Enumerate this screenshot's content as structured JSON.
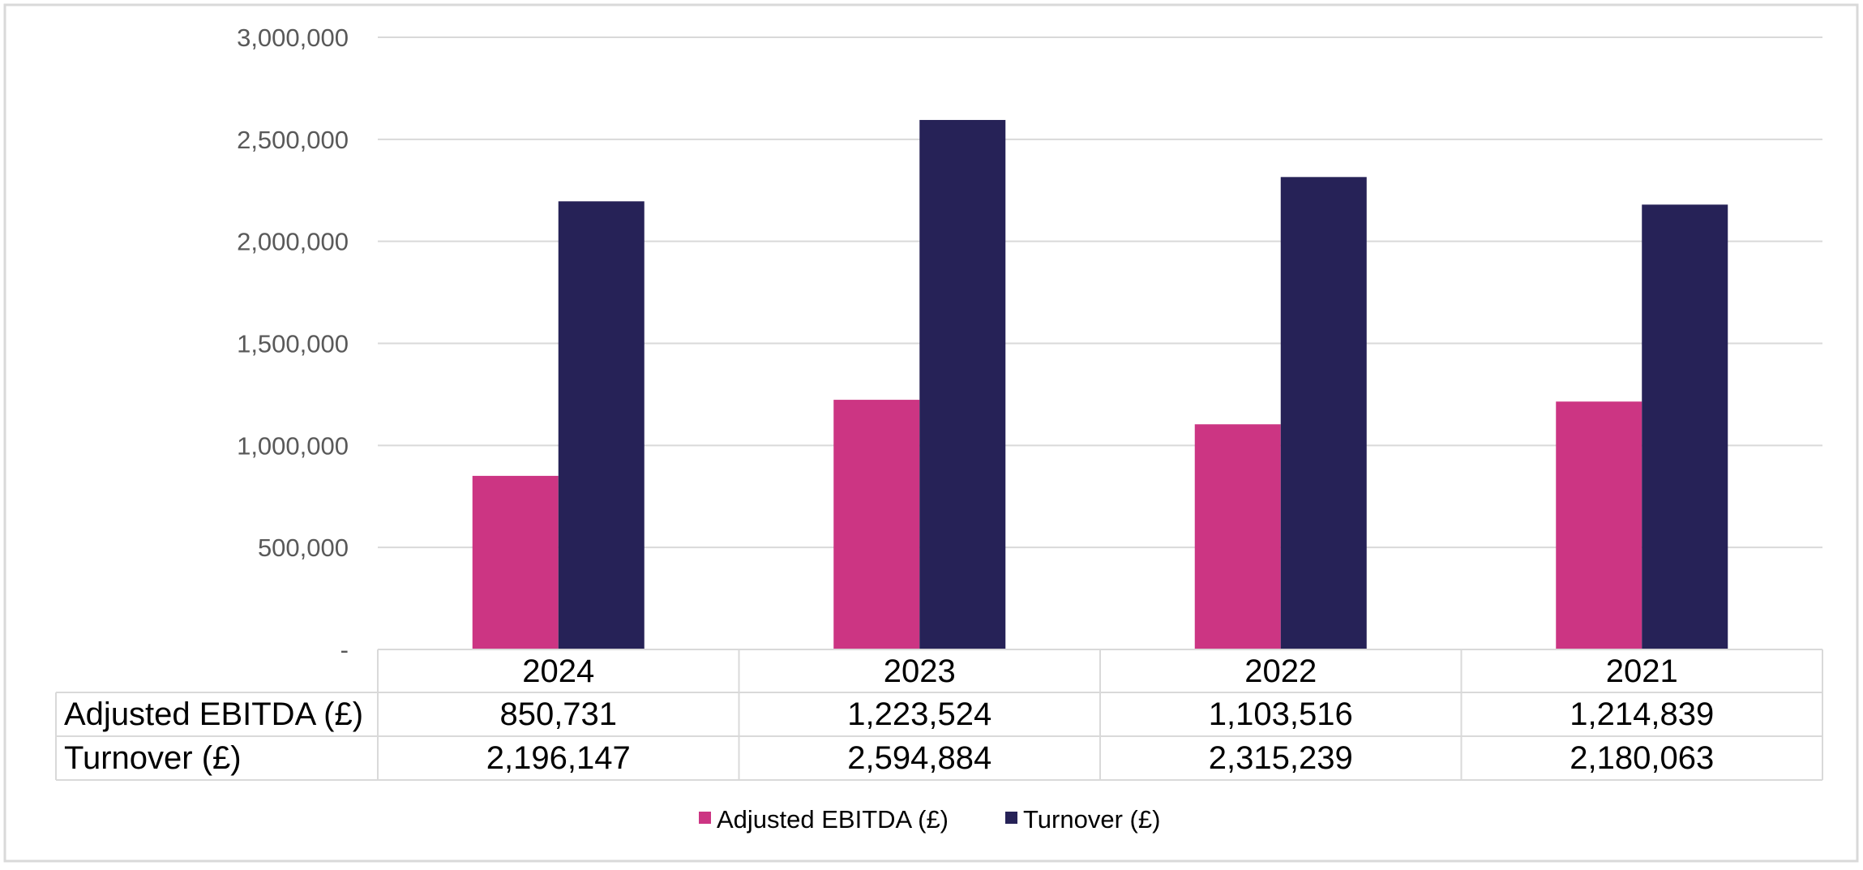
{
  "chart_data": {
    "type": "bar",
    "categories": [
      "2024",
      "2023",
      "2022",
      "2021"
    ],
    "series": [
      {
        "name": "Adjusted EBITDA (£)",
        "values": [
          850731,
          1223524,
          1103516,
          1214839
        ],
        "color": "#CC3583"
      },
      {
        "name": "Turnover (£)",
        "values": [
          2196147,
          2594884,
          2315239,
          2180063
        ],
        "color": "#262257"
      }
    ],
    "data_table": [
      [
        "850,731",
        "1,223,524",
        "1,103,516",
        "1,214,839"
      ],
      [
        "2,196,147",
        "2,594,884",
        "2,315,239",
        "2,180,063"
      ]
    ],
    "yticks": [
      0,
      500000,
      1000000,
      1500000,
      2000000,
      2500000,
      3000000
    ],
    "ytick_labels": [
      "-",
      "500,000",
      "1,000,000",
      "1,500,000",
      "2,000,000",
      "2,500,000",
      "3,000,000"
    ],
    "ylim": [
      0,
      3000000
    ],
    "grid": true,
    "legend": "bottom-center",
    "title": "",
    "xlabel": "",
    "ylabel": ""
  }
}
